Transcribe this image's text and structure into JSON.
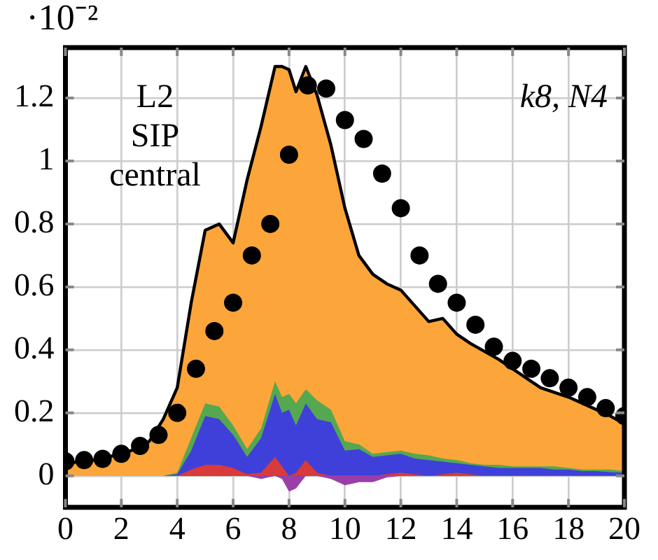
{
  "chart_data": {
    "type": "area",
    "x": [
      0,
      0.5,
      1,
      1.5,
      2,
      2.5,
      3,
      3.5,
      4,
      4.5,
      5,
      5.5,
      6,
      6.5,
      7,
      7.5,
      7.75,
      8,
      8.25,
      8.6,
      9,
      9.5,
      10,
      10.5,
      11,
      11.5,
      12,
      12.5,
      13,
      13.5,
      14,
      14.5,
      15,
      15.5,
      16,
      16.5,
      17,
      17.5,
      18,
      18.5,
      19,
      19.5,
      20
    ],
    "series": [
      {
        "color": "#9b3ea8",
        "values": [
          0,
          0,
          0,
          0,
          0,
          0,
          0,
          0,
          0,
          0,
          0,
          0,
          0,
          0,
          -0.01,
          0,
          -0.01,
          -0.05,
          -0.04,
          0,
          0,
          -0.01,
          -0.03,
          -0.02,
          -0.02,
          -0.005,
          0,
          0,
          0,
          0,
          0,
          0,
          0,
          0,
          0,
          0,
          0,
          0,
          0,
          0,
          0,
          0,
          0
        ]
      },
      {
        "color": "#d93a3a",
        "values": [
          0,
          0,
          0,
          0,
          0,
          0,
          0,
          0,
          0,
          0.02,
          0.035,
          0.035,
          0.025,
          0.005,
          0.01,
          0.06,
          0.03,
          0,
          0.01,
          0.05,
          0.01,
          0,
          0,
          0,
          0,
          0.005,
          0.01,
          0.005,
          0,
          0.005,
          0.01,
          0.005,
          0,
          0,
          0,
          0,
          0,
          0,
          0,
          0,
          0,
          0,
          0
        ]
      },
      {
        "color": "#3f40d9",
        "values": [
          0,
          0,
          0,
          0,
          0,
          0,
          0,
          0,
          0.005,
          0.08,
          0.19,
          0.18,
          0.13,
          0.06,
          0.12,
          0.26,
          0.2,
          0.21,
          0.16,
          0.23,
          0.18,
          0.17,
          0.08,
          0.085,
          0.06,
          0.065,
          0.07,
          0.055,
          0.05,
          0.045,
          0.04,
          0.035,
          0.03,
          0.025,
          0.025,
          0.025,
          0.025,
          0.02,
          0.02,
          0.015,
          0.015,
          0.012,
          0.01
        ]
      },
      {
        "color": "#55a84f",
        "values": [
          0,
          0,
          0,
          0,
          0,
          0,
          0,
          0,
          0.01,
          0.12,
          0.23,
          0.22,
          0.16,
          0.085,
          0.15,
          0.3,
          0.25,
          0.26,
          0.23,
          0.275,
          0.24,
          0.21,
          0.11,
          0.1,
          0.07,
          0.075,
          0.08,
          0.07,
          0.065,
          0.055,
          0.05,
          0.04,
          0.035,
          0.035,
          0.03,
          0.03,
          0.03,
          0.03,
          0.025,
          0.02,
          0.02,
          0.02,
          0.015
        ]
      },
      {
        "color": "#fca53a",
        "values": [
          0.04,
          0.045,
          0.05,
          0.06,
          0.07,
          0.085,
          0.11,
          0.18,
          0.28,
          0.55,
          0.78,
          0.8,
          0.74,
          0.94,
          1.11,
          1.3,
          1.3,
          1.29,
          1.22,
          1.3,
          1.21,
          1.05,
          0.85,
          0.7,
          0.64,
          0.61,
          0.59,
          0.54,
          0.49,
          0.5,
          0.45,
          0.42,
          0.395,
          0.37,
          0.34,
          0.31,
          0.28,
          0.265,
          0.25,
          0.23,
          0.21,
          0.19,
          0.165
        ]
      },
      {
        "type": "scatter",
        "color": "#000000",
        "marker": "circle",
        "x": [
          0,
          0.67,
          1.33,
          2,
          2.67,
          3.33,
          4,
          4.67,
          5.33,
          6,
          6.67,
          7.33,
          8,
          8.67,
          9.33,
          10,
          10.67,
          11.33,
          12,
          12.67,
          13.33,
          14,
          14.67,
          15.33,
          16,
          16.67,
          17.33,
          18,
          18.67,
          19.33,
          20
        ],
        "values": [
          0.046,
          0.05,
          0.054,
          0.07,
          0.095,
          0.13,
          0.2,
          0.34,
          0.46,
          0.55,
          0.7,
          0.8,
          1.02,
          1.24,
          1.23,
          1.13,
          1.07,
          0.96,
          0.85,
          0.7,
          0.61,
          0.55,
          0.48,
          0.41,
          0.365,
          0.34,
          0.31,
          0.28,
          0.25,
          0.215,
          0.19
        ]
      }
    ],
    "xlim": [
      0,
      20
    ],
    "xticks": [
      0,
      2,
      4,
      6,
      8,
      10,
      12,
      14,
      16,
      18,
      20
    ],
    "ylim": [
      -0.1,
      1.36
    ],
    "yticks": [
      0,
      0.2,
      0.4,
      0.6,
      0.8,
      1,
      1.2
    ],
    "grid": true,
    "legend": false,
    "marker": "none",
    "annotations": [
      "L2\nSIP\ncentral",
      "k8, N4",
      "·10⁻²"
    ]
  }
}
